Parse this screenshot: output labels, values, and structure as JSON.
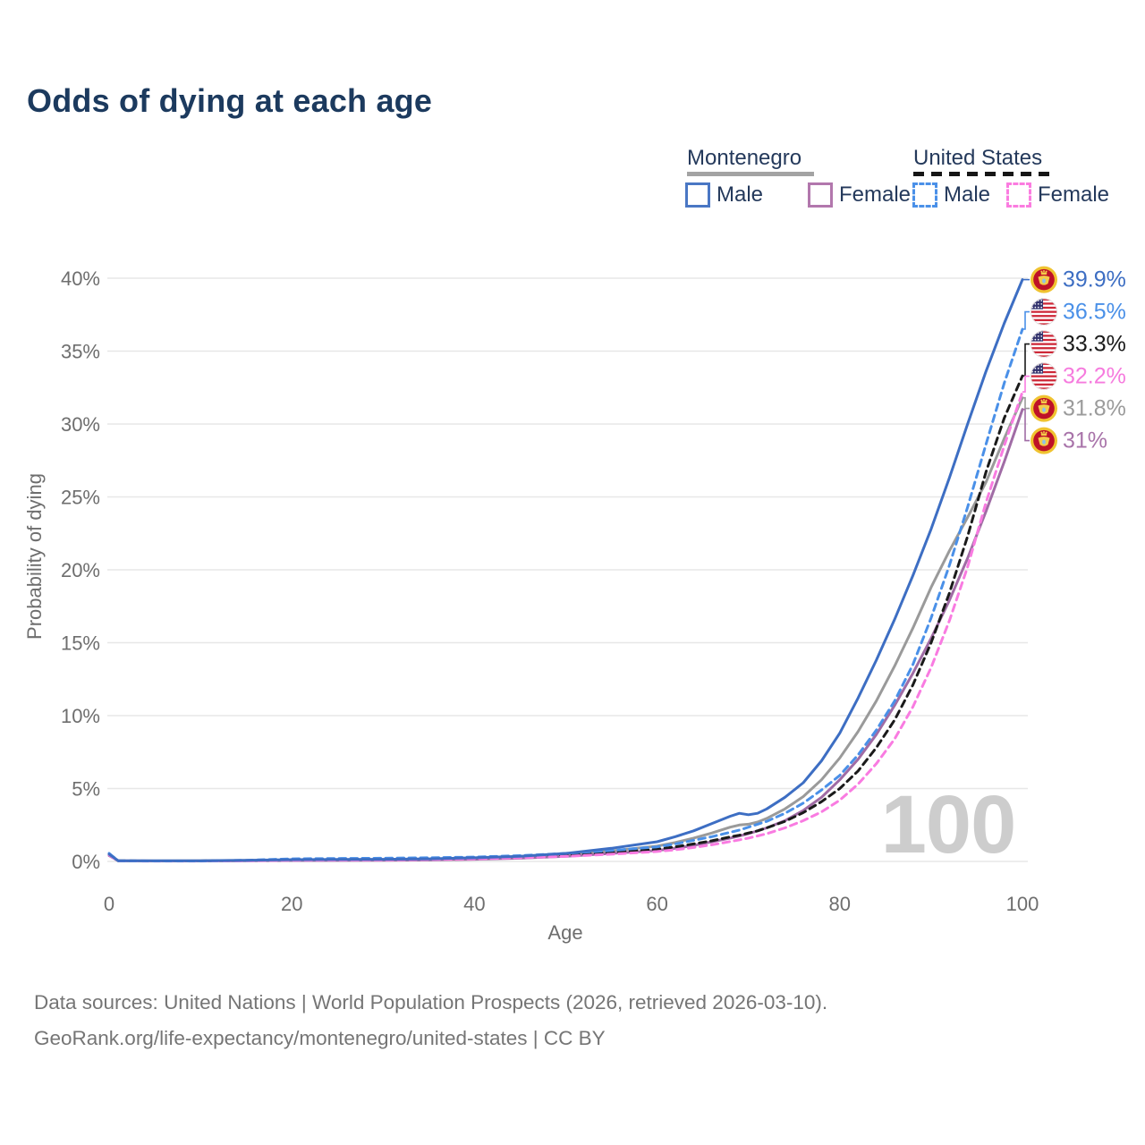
{
  "title": "Odds of dying at each age",
  "legend": {
    "groups": [
      {
        "label": "Montenegro",
        "line_style": "solid",
        "line_color": "#a3a3a3"
      },
      {
        "label": "United States",
        "line_style": "dashed",
        "line_color": "#161616"
      }
    ],
    "items": [
      {
        "label": "Male",
        "country": "Montenegro",
        "color": "#4a77c4",
        "dashed": false
      },
      {
        "label": "Female",
        "country": "Montenegro",
        "color": "#b277ad",
        "dashed": false
      },
      {
        "label": "Male",
        "country": "United States",
        "color": "#4a90e8",
        "dashed": true
      },
      {
        "label": "Female",
        "country": "United States",
        "color": "#fb7ce0",
        "dashed": true
      }
    ]
  },
  "footer": {
    "line1": "Data sources: United Nations | World Population Prospects (2026, retrieved 2026-03-10).",
    "line2": "GeoRank.org/life-expectancy/montenegro/united-states | CC BY"
  },
  "chart_data": {
    "type": "line",
    "title": "Odds of dying at each age",
    "xlabel": "Age",
    "ylabel": "Probability of dying",
    "xlim": [
      0,
      100
    ],
    "ylim": [
      0,
      40
    ],
    "grid": true,
    "watermark": "100",
    "x_tick_values": [
      0,
      20,
      40,
      60,
      80,
      100
    ],
    "x_tick_labels": [
      "0",
      "20",
      "40",
      "60",
      "80",
      "100"
    ],
    "y_tick_values": [
      0,
      5,
      10,
      15,
      20,
      25,
      30,
      35,
      40
    ],
    "y_tick_labels": [
      "0%",
      "5%",
      "10%",
      "15%",
      "20%",
      "25%",
      "30%",
      "35%",
      "40%"
    ],
    "ages": [
      0,
      1,
      5,
      10,
      15,
      20,
      25,
      30,
      35,
      40,
      45,
      50,
      55,
      60,
      62,
      64,
      66,
      68,
      69,
      70,
      71,
      72,
      74,
      76,
      78,
      80,
      82,
      84,
      86,
      88,
      90,
      92,
      94,
      96,
      98,
      100
    ],
    "series": [
      {
        "id": "mne-male",
        "name": "Montenegro Male",
        "country": "montenegro",
        "color": "#3d6ec3",
        "dashed": false,
        "zorder": 6,
        "end_label": "39.9%",
        "end_value": 39.9,
        "label_color": "#3d6ec3",
        "values": [
          0.5,
          0.05,
          0.04,
          0.05,
          0.08,
          0.12,
          0.14,
          0.15,
          0.18,
          0.25,
          0.35,
          0.55,
          0.9,
          1.35,
          1.7,
          2.1,
          2.6,
          3.1,
          3.3,
          3.2,
          3.3,
          3.6,
          4.4,
          5.4,
          6.9,
          8.8,
          11.2,
          13.8,
          16.6,
          19.6,
          22.8,
          26.3,
          30.0,
          33.6,
          36.9,
          39.9
        ]
      },
      {
        "id": "us-male",
        "name": "United States Male",
        "country": "us",
        "color": "#4a90e8",
        "dashed": true,
        "zorder": 5,
        "end_label": "36.5%",
        "end_value": 36.5,
        "label_color": "#4a90e8",
        "values": [
          0.55,
          0.04,
          0.03,
          0.03,
          0.08,
          0.18,
          0.2,
          0.22,
          0.25,
          0.3,
          0.4,
          0.55,
          0.75,
          1.0,
          1.2,
          1.45,
          1.7,
          2.0,
          2.15,
          2.35,
          2.55,
          2.75,
          3.3,
          4.0,
          4.9,
          5.9,
          7.3,
          9.0,
          11.0,
          13.5,
          16.7,
          20.3,
          24.3,
          28.6,
          32.8,
          36.5
        ]
      },
      {
        "id": "us-both",
        "name": "United States Both sexes",
        "country": "us",
        "color": "#1a1a1a",
        "dashed": true,
        "zorder": 3,
        "end_label": "33.3%",
        "end_value": 33.3,
        "label_color": "#1a1a1a",
        "values": [
          0.5,
          0.035,
          0.028,
          0.028,
          0.06,
          0.13,
          0.15,
          0.17,
          0.2,
          0.25,
          0.33,
          0.45,
          0.62,
          0.84,
          1.0,
          1.2,
          1.42,
          1.68,
          1.8,
          1.95,
          2.1,
          2.3,
          2.75,
          3.35,
          4.1,
          5.0,
          6.2,
          7.8,
          9.7,
          12.1,
          15.0,
          18.4,
          22.3,
          26.7,
          30.4,
          33.3
        ]
      },
      {
        "id": "us-female",
        "name": "United States Female",
        "country": "us",
        "color": "#f97be1",
        "dashed": true,
        "zorder": 4,
        "end_label": "32.2%",
        "end_value": 32.2,
        "label_color": "#f67bde",
        "values": [
          0.45,
          0.03,
          0.025,
          0.025,
          0.04,
          0.08,
          0.09,
          0.1,
          0.13,
          0.18,
          0.25,
          0.35,
          0.5,
          0.68,
          0.8,
          0.96,
          1.14,
          1.36,
          1.48,
          1.6,
          1.75,
          1.9,
          2.3,
          2.8,
          3.4,
          4.2,
          5.3,
          6.7,
          8.4,
          10.6,
          13.3,
          16.5,
          20.2,
          24.6,
          28.5,
          32.2
        ]
      },
      {
        "id": "mne-both",
        "name": "Montenegro Both sexes",
        "country": "montenegro",
        "color": "#9a9a9a",
        "dashed": false,
        "zorder": 1,
        "end_label": "31.8%",
        "end_value": 31.8,
        "label_color": "#9b9b9b",
        "values": [
          0.45,
          0.045,
          0.035,
          0.04,
          0.065,
          0.09,
          0.1,
          0.11,
          0.14,
          0.2,
          0.28,
          0.45,
          0.72,
          1.05,
          1.3,
          1.6,
          1.95,
          2.35,
          2.5,
          2.55,
          2.7,
          2.95,
          3.6,
          4.45,
          5.6,
          7.1,
          8.9,
          11.0,
          13.4,
          16.0,
          18.8,
          21.3,
          23.6,
          26.0,
          29.0,
          31.8
        ]
      },
      {
        "id": "mne-female",
        "name": "Montenegro Female",
        "country": "montenegro",
        "color": "#a06ca5",
        "dashed": false,
        "zorder": 2,
        "end_label": "31%",
        "end_value": 31.0,
        "label_color": "#a873a9",
        "values": [
          0.4,
          0.04,
          0.03,
          0.03,
          0.05,
          0.06,
          0.07,
          0.08,
          0.1,
          0.15,
          0.22,
          0.35,
          0.55,
          0.75,
          0.9,
          1.1,
          1.35,
          1.6,
          1.75,
          1.9,
          2.1,
          2.3,
          2.8,
          3.5,
          4.4,
          5.6,
          7.0,
          8.7,
          10.7,
          12.9,
          15.3,
          17.9,
          20.8,
          24.0,
          27.4,
          31.0
        ]
      }
    ],
    "flag_colors": {
      "montenegro": {
        "ring": "#f0c330",
        "field": "#be1128",
        "emblem": "#f3cc4a",
        "shield": "#8fc0e8"
      },
      "us": {
        "red": "#ce2939",
        "white": "#ffffff",
        "canton": "#34346e"
      }
    }
  }
}
